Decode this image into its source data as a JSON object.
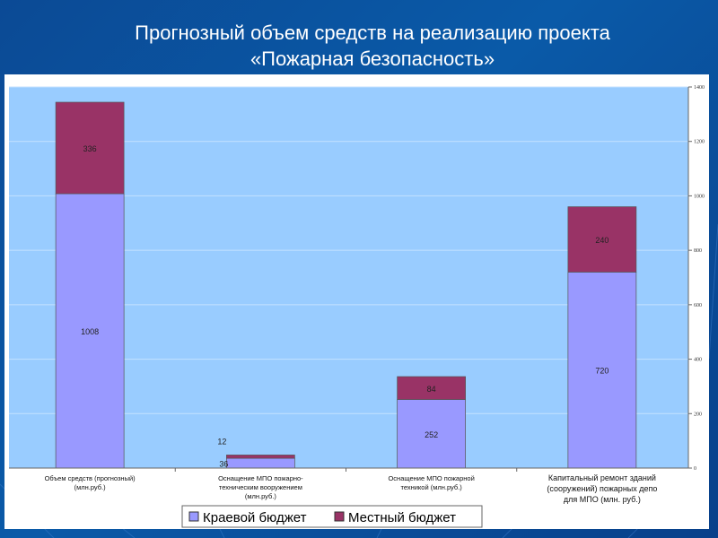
{
  "title_line1": "Прогнозный объем средств на реализацию проекта",
  "title_line2": "«Пожарная безопасность»",
  "chart_data": {
    "type": "bar",
    "stacked": true,
    "title": "Прогнозный объем средств на реализацию проекта «Пожарная безопасность»",
    "categories": [
      [
        "Объем средств (прогнозный)",
        "(млн.руб.)"
      ],
      [
        "Оснащение МПО пожарно-",
        "техническим вооружением",
        "(млн.руб.)"
      ],
      [
        "Оснащение МПО пожарной",
        "техникой (млн.руб.)"
      ],
      [
        "Капитальный ремонт зданий",
        "(сооружений) пожарных депо",
        "для МПО (млн. руб.)"
      ]
    ],
    "series": [
      {
        "name": "Краевой бюджет",
        "color": "#9999ff",
        "values": [
          1008,
          36,
          252,
          720
        ]
      },
      {
        "name": "Местный бюджет",
        "color": "#993366",
        "values": [
          336,
          12,
          84,
          240
        ]
      }
    ],
    "ylim": [
      0,
      1400
    ],
    "yticks": [
      0,
      200,
      400,
      600,
      800,
      1000,
      1200,
      1400
    ],
    "grid": true,
    "legend_position": "bottom",
    "y_axis_side": "right"
  }
}
